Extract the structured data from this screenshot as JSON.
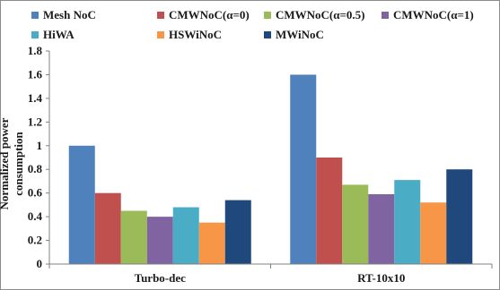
{
  "chart_data": {
    "type": "bar",
    "title": "",
    "xlabel": "",
    "ylabel": "Normalized power consumption",
    "categories": [
      "Turbo-dec",
      "RT-10x10"
    ],
    "ylim": [
      0,
      1.8
    ],
    "yticks": [
      "0",
      "0.2",
      "0.4",
      "0.6",
      "0.8",
      "1",
      "1.2",
      "1.4",
      "1.6",
      "1.8"
    ],
    "grid": false,
    "legend_position": "top",
    "series": [
      {
        "name": "Mesh NoC",
        "color": "#4f81bd",
        "values": [
          1.0,
          1.6
        ]
      },
      {
        "name": "CMWNoC(α=0)",
        "color": "#c0504d",
        "values": [
          0.6,
          0.9
        ]
      },
      {
        "name": "CMWNoC(α=0.5)",
        "color": "#9bbb59",
        "values": [
          0.45,
          0.67
        ]
      },
      {
        "name": "CMWNoC(α=1)",
        "color": "#8064a2",
        "values": [
          0.4,
          0.59
        ]
      },
      {
        "name": "HiWA",
        "color": "#4bacc6",
        "values": [
          0.48,
          0.71
        ]
      },
      {
        "name": "HSWiNoC",
        "color": "#f79646",
        "values": [
          0.35,
          0.52
        ]
      },
      {
        "name": "MWiNoC",
        "color": "#1f497d",
        "values": [
          0.54,
          0.8
        ]
      }
    ]
  }
}
